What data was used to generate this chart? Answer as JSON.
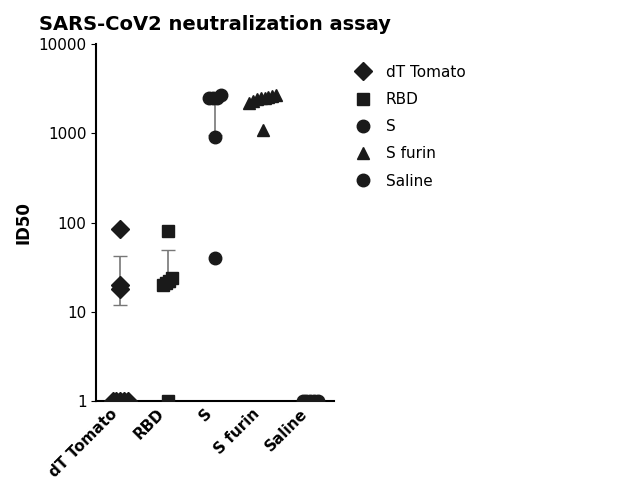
{
  "title": "SARS-CoV2 neutralization assay",
  "ylabel": "ID50",
  "categories": [
    "dT Tomato",
    "RBD",
    "S",
    "S furin",
    "Saline"
  ],
  "ylim_log": [
    1,
    10000
  ],
  "groups": {
    "dT Tomato": {
      "marker": "D",
      "points_low": [
        1,
        1,
        1,
        1,
        1
      ],
      "points_high": [
        18,
        20,
        85
      ],
      "mean": 18,
      "error_low": 12,
      "error_high": 42,
      "jitter_low": [
        -0.16,
        -0.08,
        0.0,
        0.08,
        0.16
      ],
      "jitter_high": [
        0.0,
        0.0,
        0.0
      ]
    },
    "RBD": {
      "marker": "s",
      "points_low": [
        1
      ],
      "points_high": [
        20,
        21,
        22,
        24,
        80
      ],
      "mean": 22,
      "error_low": 19,
      "error_high": 50,
      "jitter_low": [
        0.0
      ],
      "jitter_high": [
        -0.1,
        -0.03,
        0.03,
        0.1,
        0.0
      ]
    },
    "S": {
      "marker": "o",
      "points_low": [
        40,
        900
      ],
      "points_high": [
        2500,
        2500,
        2500,
        2700
      ],
      "mean": 2500,
      "error_low": 950,
      "error_high": 2600,
      "jitter_low": [
        0.0,
        0.0
      ],
      "jitter_high": [
        -0.12,
        -0.04,
        0.04,
        0.12
      ]
    },
    "S furin": {
      "marker": "^",
      "points_low": [
        1100
      ],
      "points_high": [
        2200,
        2300,
        2400,
        2450,
        2500,
        2550,
        2600,
        2650
      ],
      "mean": 2400,
      "error_low": 2200,
      "error_high": 2500,
      "jitter_low": [
        0.0
      ],
      "jitter_high": [
        -0.28,
        -0.2,
        -0.12,
        -0.04,
        0.04,
        0.12,
        0.2,
        0.28
      ]
    },
    "Saline": {
      "marker": "o",
      "points_low": [
        1,
        1,
        1,
        1,
        1
      ],
      "points_high": [],
      "mean": null,
      "error_low": null,
      "error_high": null,
      "jitter_low": [
        -0.16,
        -0.08,
        0.0,
        0.08,
        0.16
      ],
      "jitter_high": []
    }
  },
  "legend_entries": [
    {
      "label": "dT Tomato",
      "marker": "D"
    },
    {
      "label": "RBD",
      "marker": "s"
    },
    {
      "label": "S",
      "marker": "o"
    },
    {
      "label": "S furin",
      "marker": "^"
    },
    {
      "label": "Saline",
      "marker": "o"
    }
  ],
  "background_color": "#ffffff",
  "title_fontsize": 14,
  "axis_fontsize": 12,
  "tick_fontsize": 11,
  "legend_fontsize": 11
}
